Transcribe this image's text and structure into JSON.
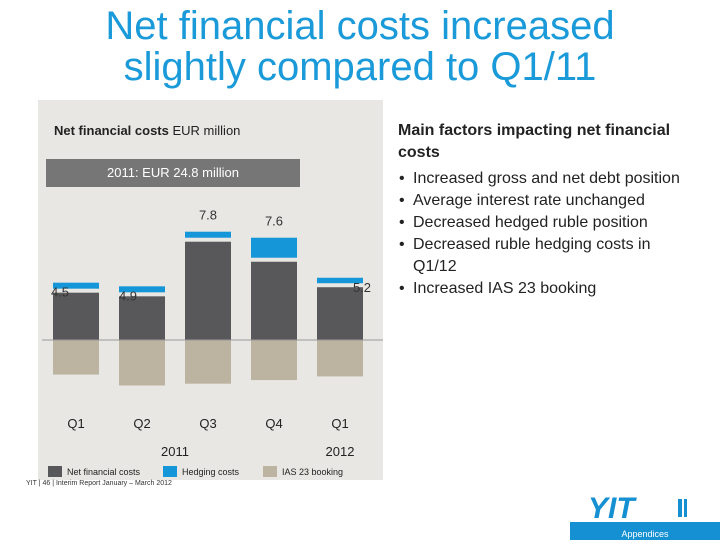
{
  "slide": {
    "title_line1": "Net financial costs increased",
    "title_line2": "slightly compared to Q1/11"
  },
  "chart_title_bold": "Net financial costs",
  "chart_title_unit": "EUR million",
  "total_label": "2011: EUR 24.8 million",
  "chart_data": {
    "type": "bar",
    "stacked": true,
    "categories": [
      "Q1",
      "Q2",
      "Q3",
      "Q4",
      "Q1"
    ],
    "year_groups": [
      {
        "label": "2011"
      },
      {
        "label": "2012"
      }
    ],
    "series": [
      {
        "name": "Net financial costs",
        "color": "#58585a",
        "values": [
          2.6,
          2.4,
          5.4,
          4.3,
          2.9
        ]
      },
      {
        "name": "Hedging costs",
        "color": "#1596d8",
        "values": [
          0.0,
          0.0,
          0.0,
          1.1,
          0.3
        ]
      },
      {
        "name": "IAS 23 booking",
        "color": "#bcb3a0",
        "values": [
          1.9,
          2.5,
          2.4,
          2.2,
          2.0
        ]
      }
    ],
    "totals": [
      "4.5",
      "4.9",
      "7.8",
      "7.6",
      "5.2"
    ],
    "ylim": [
      0,
      8
    ],
    "grid": false,
    "legend_position": "bottom"
  },
  "right": {
    "header": "Main factors impacting net financial costs",
    "bullet_char": "•",
    "bullets": [
      "Increased gross and net debt position",
      "Average interest rate unchanged",
      "Decreased hedged ruble position",
      "Decreased ruble hedging costs in Q1/12",
      "Increased IAS 23 booking"
    ]
  },
  "footer": {
    "text": "YIT  |  46  |  Interim Report January – March 2012"
  },
  "logo_text": "YIT",
  "appendices_label": "Appendices"
}
